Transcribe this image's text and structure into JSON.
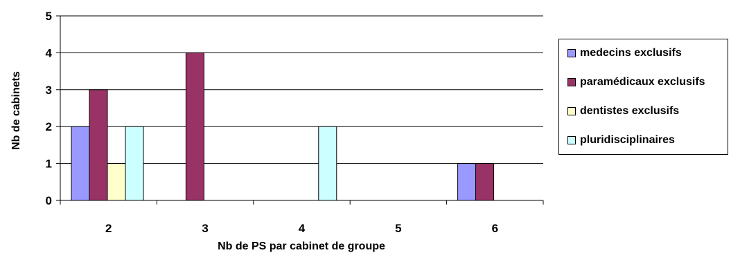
{
  "chart_data": {
    "type": "bar",
    "title": "",
    "xlabel": "Nb de PS par cabinet de groupe",
    "ylabel": "Nb de cabinets",
    "categories": [
      "2",
      "3",
      "4",
      "5",
      "6"
    ],
    "ylim": [
      0,
      5
    ],
    "yticks": [
      "0",
      "1",
      "2",
      "3",
      "4",
      "5"
    ],
    "grid": "horizontal",
    "legend_position": "right",
    "series": [
      {
        "name": "medecins exclusifs",
        "color": "#9999FF",
        "values": [
          2,
          0,
          0,
          0,
          1
        ]
      },
      {
        "name": "paramédicaux exclusifs",
        "color": "#993366",
        "values": [
          3,
          4,
          0,
          0,
          1
        ]
      },
      {
        "name": "dentistes exclusifs",
        "color": "#FFFFCC",
        "values": [
          1,
          0,
          0,
          0,
          0
        ]
      },
      {
        "name": "pluridisciplinaires",
        "color": "#CCFFFF",
        "values": [
          2,
          0,
          2,
          0,
          0
        ]
      }
    ]
  }
}
